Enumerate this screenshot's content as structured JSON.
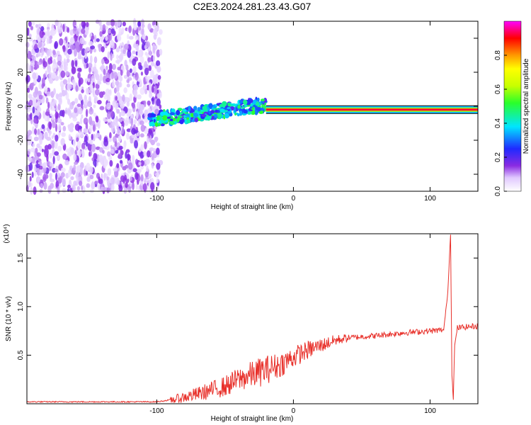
{
  "title": "C2E3.2024.281.23.43.G07",
  "colors": {
    "axis": "#000000",
    "snr_line": "#e8302a",
    "background": "#ffffff"
  },
  "chart_data": [
    {
      "type": "heatmap",
      "title": "C2E3.2024.281.23.43.G07",
      "xlabel": "Height of straight line (km)",
      "ylabel": "Frequency (Hz)",
      "xlim": [
        -195,
        135
      ],
      "ylim": [
        -50,
        50
      ],
      "x_ticks": [
        -100,
        0,
        100
      ],
      "y_ticks": [
        -40,
        -20,
        0,
        20,
        40
      ],
      "colorbar": {
        "label": "Normalized spectral amplitude",
        "ticks": [
          "0.0",
          "0.2",
          "0.4",
          "0.6",
          "0.8"
        ],
        "range": [
          0,
          1
        ],
        "colormap": "rainbow"
      },
      "regions": [
        {
          "name": "noise",
          "x_range": [
            -195,
            -97
          ],
          "y_range": [
            -50,
            50
          ],
          "amplitude": [
            0.0,
            0.15
          ]
        },
        {
          "name": "signal-rise",
          "x_range": [
            -105,
            -20
          ],
          "frequency_hz": [
            -10,
            3
          ],
          "amplitude": [
            0.1,
            0.45
          ]
        },
        {
          "name": "signal-strong",
          "x_range": [
            -20,
            135
          ],
          "frequency_hz": -2,
          "amplitude": [
            0.7,
            1.0
          ]
        }
      ]
    },
    {
      "type": "line",
      "xlabel": "Height of straight line (km)",
      "ylabel": "SNR (10 * v/v)",
      "y_multiplier": "(x10⁴)",
      "xlim": [
        -195,
        135
      ],
      "ylim": [
        0,
        1.75
      ],
      "x_ticks": [
        -100,
        0,
        100
      ],
      "y_ticks": [
        0.5,
        1.0,
        1.5
      ],
      "series": [
        {
          "x": [
            -195,
            -150,
            -100,
            -85,
            -70,
            -50,
            -40,
            -30,
            -20,
            -10,
            0,
            10,
            20,
            30,
            40,
            60,
            80,
            100,
            110,
            113,
            115,
            116,
            117,
            118,
            120,
            125,
            135
          ],
          "y": [
            0.02,
            0.02,
            0.02,
            0.05,
            0.1,
            0.18,
            0.25,
            0.3,
            0.35,
            0.4,
            0.48,
            0.55,
            0.6,
            0.65,
            0.68,
            0.7,
            0.73,
            0.75,
            0.76,
            1.15,
            1.75,
            0.3,
            0.05,
            0.6,
            0.78,
            0.79,
            0.8
          ]
        }
      ]
    }
  ]
}
